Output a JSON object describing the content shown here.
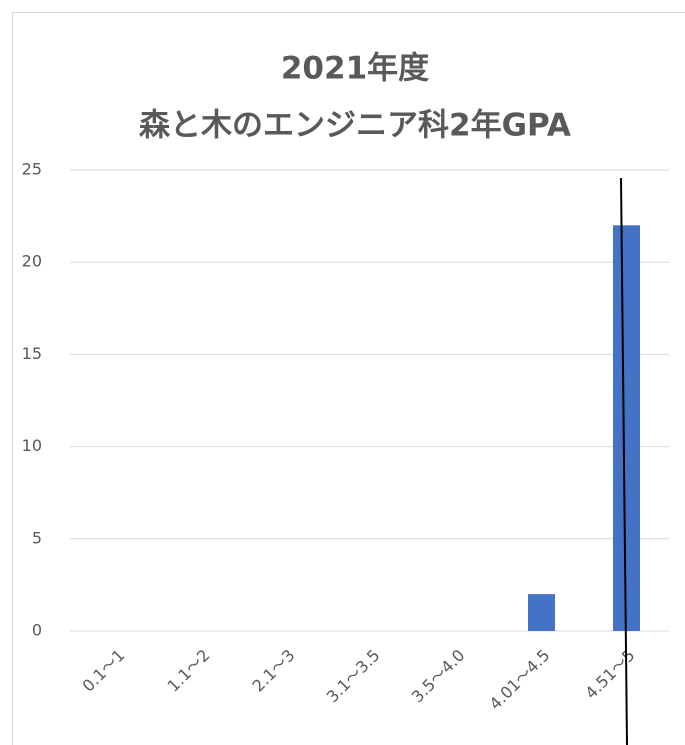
{
  "chart_data": {
    "type": "bar",
    "title": "2021年度",
    "subtitle": "森と木のエンジニア科2年GPA",
    "categories": [
      "0.1～1",
      "1.1～2",
      "2.1～3",
      "3.1～3.5",
      "3.5～4.0",
      "4.01～4.5",
      "4.51～5"
    ],
    "values": [
      0,
      0,
      0,
      0,
      0,
      2,
      22
    ],
    "color": "#4472c4",
    "ylim": [
      0,
      25
    ],
    "yticks": [
      0,
      5,
      10,
      15,
      20,
      25
    ],
    "grid": true
  }
}
